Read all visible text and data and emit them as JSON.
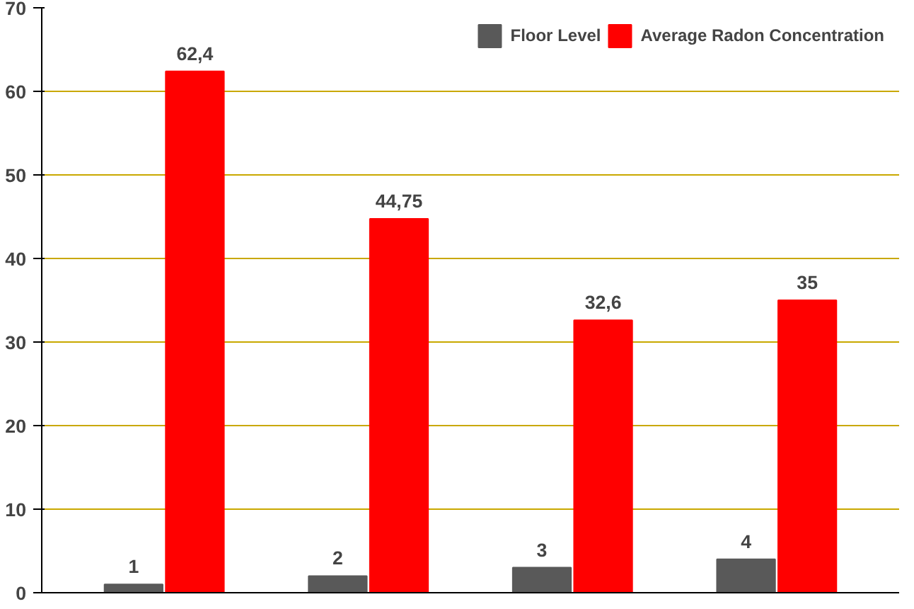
{
  "chart_data": {
    "type": "bar",
    "categories": [
      null,
      null,
      null,
      null
    ],
    "series": [
      {
        "name": "Floor Level",
        "color": "#595959",
        "values": [
          1,
          2,
          3,
          4
        ],
        "value_labels": [
          "1",
          "2",
          "3",
          "4"
        ]
      },
      {
        "name": "Average Radon Concentration",
        "color": "#ff0000",
        "values": [
          62.4,
          44.75,
          32.6,
          35
        ],
        "value_labels": [
          "62,4",
          "44,75",
          "32,6",
          "35"
        ]
      }
    ],
    "ylim": [
      0,
      70
    ],
    "yticks": [
      0,
      10,
      20,
      30,
      40,
      50,
      60,
      70
    ],
    "grid": "y",
    "legend": "top right",
    "tick_labels": "y"
  }
}
